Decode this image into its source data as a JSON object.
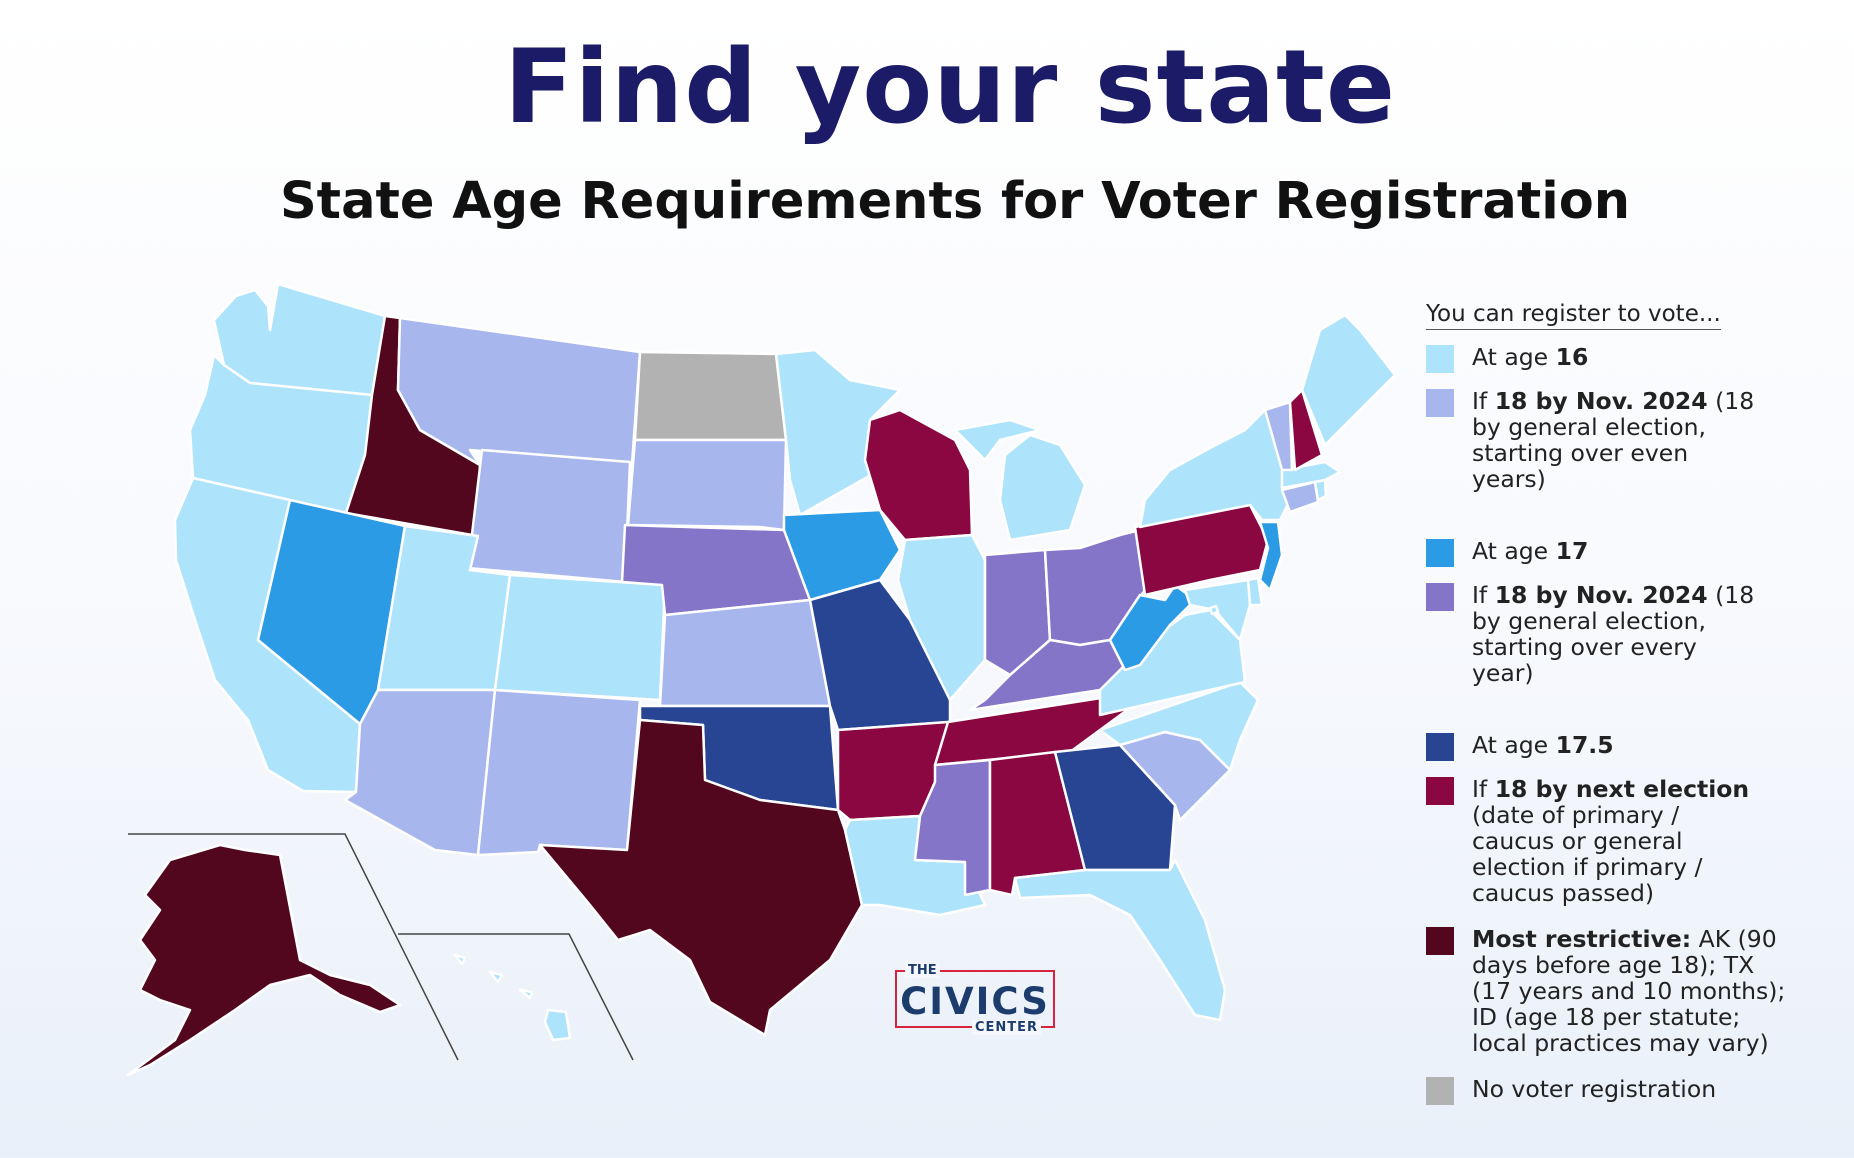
{
  "title": "Find your state",
  "subtitle": "State Age Requirements for Voter Registration",
  "colors": {
    "age16": "#aee3fc",
    "by18_even": "#a7b6ec",
    "age17": "#2b9be6",
    "by18_every": "#8575c8",
    "age17_5": "#284594",
    "next_election": "#8b0741",
    "most_restrictive": "#52071f",
    "no_registration": "#b2b2b2",
    "title": "#1c1b67",
    "logo_red": "#d8233f",
    "logo_navy": "#1c3c6e"
  },
  "legend": {
    "heading": "You can register to vote...",
    "items": [
      {
        "category": "age16",
        "pre": "At age ",
        "bold": "16",
        "post": ""
      },
      {
        "category": "by18_even",
        "pre": "If ",
        "bold": "18 by Nov. 2024",
        "post": " (18 by general election, starting over even years)"
      },
      {
        "category": "age17",
        "pre": "At age ",
        "bold": "17",
        "post": ""
      },
      {
        "category": "by18_every",
        "pre": "If ",
        "bold": "18 by Nov. 2024",
        "post": " (18 by general election, starting over every year)"
      },
      {
        "category": "age17_5",
        "pre": "At age ",
        "bold": "17.5",
        "post": ""
      },
      {
        "category": "next_election",
        "pre": "If ",
        "bold": "18 by next election",
        "post": " (date of primary / caucus or general election if primary / caucus passed)"
      },
      {
        "category": "most_restrictive",
        "pre": "",
        "bold": "Most restrictive:",
        "post": " AK (90 days before age 18); TX (17 years and 10 months); ID (age 18 per statute; local practices may vary)"
      },
      {
        "category": "no_registration",
        "pre": "No voter registration",
        "bold": "",
        "post": ""
      }
    ]
  },
  "logo": {
    "the": "THE",
    "civics": "CIVICS",
    "center": "CENTER"
  },
  "map_data": {
    "age16": [
      "WA",
      "OR",
      "CA",
      "UT",
      "CO",
      "MN",
      "MI",
      "IL",
      "FL",
      "LA",
      "NY",
      "ME",
      "VA",
      "NC",
      "MD",
      "DE",
      "DC",
      "RI",
      "MA",
      "HI"
    ],
    "by18_even": [
      "MT",
      "WY",
      "SD",
      "KS",
      "AZ",
      "NM",
      "SC",
      "VT",
      "CT"
    ],
    "age17": [
      "NV",
      "IA",
      "WV",
      "NJ"
    ],
    "by18_every": [
      "NE",
      "IN",
      "OH",
      "KY",
      "MS"
    ],
    "age17_5": [
      "MO",
      "OK",
      "GA"
    ],
    "next_election": [
      "WI",
      "AR",
      "TN",
      "AL",
      "PA",
      "NH"
    ],
    "most_restrictive": [
      "ID",
      "TX",
      "AK"
    ],
    "no_registration": [
      "ND"
    ]
  }
}
